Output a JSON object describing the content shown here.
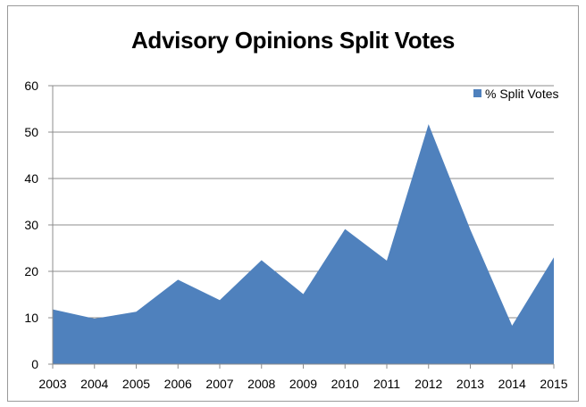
{
  "chart_data": {
    "type": "area",
    "title": "Advisory Opinions Split Votes",
    "xlabel": "",
    "ylabel": "",
    "ylim": [
      0,
      60
    ],
    "yticks": [
      0,
      10,
      20,
      30,
      40,
      50,
      60
    ],
    "categories": [
      "2003",
      "2004",
      "2005",
      "2006",
      "2007",
      "2008",
      "2009",
      "2010",
      "2011",
      "2012",
      "2013",
      "2014",
      "2015"
    ],
    "series": [
      {
        "name": "% Split Votes",
        "color": "#4f81bd",
        "values": [
          11.8,
          9.8,
          11.3,
          18.2,
          13.8,
          22.4,
          15.1,
          29.1,
          22.3,
          51.7,
          29.0,
          8.3,
          23.0
        ]
      }
    ],
    "grid": true,
    "legend_position": "top-right"
  }
}
